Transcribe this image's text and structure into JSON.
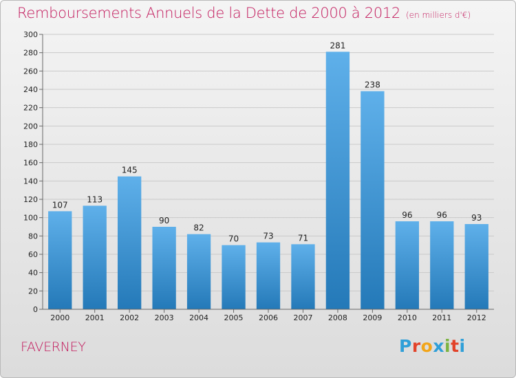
{
  "title": "Remboursements Annuels de la Dette de 2000 à 2012",
  "subtitle": "(en milliers d'€)",
  "place": "FAVERNEY",
  "logo": {
    "letters": [
      "P",
      "r",
      "o",
      "x",
      "i",
      "t",
      "i"
    ],
    "colors": [
      "#2f9fd8",
      "#e2432a",
      "#f2a51a",
      "#2f9fd8",
      "#7cb342",
      "#e2432a",
      "#2f9fd8"
    ]
  },
  "colors": {
    "title": "#c2185b",
    "bar_top": "#5fb0ea",
    "bar_bottom": "#2479b8"
  },
  "chart_data": {
    "type": "bar",
    "categories": [
      "2000",
      "2001",
      "2002",
      "2003",
      "2004",
      "2005",
      "2006",
      "2007",
      "2008",
      "2009",
      "2010",
      "2011",
      "2012"
    ],
    "values": [
      107,
      113,
      145,
      90,
      82,
      70,
      73,
      71,
      281,
      238,
      96,
      96,
      93
    ],
    "ylim": [
      0,
      300
    ],
    "yticks": [
      0,
      20,
      40,
      60,
      80,
      100,
      120,
      140,
      160,
      180,
      200,
      220,
      240,
      260,
      280,
      300
    ],
    "grid": true,
    "legend": "none"
  }
}
